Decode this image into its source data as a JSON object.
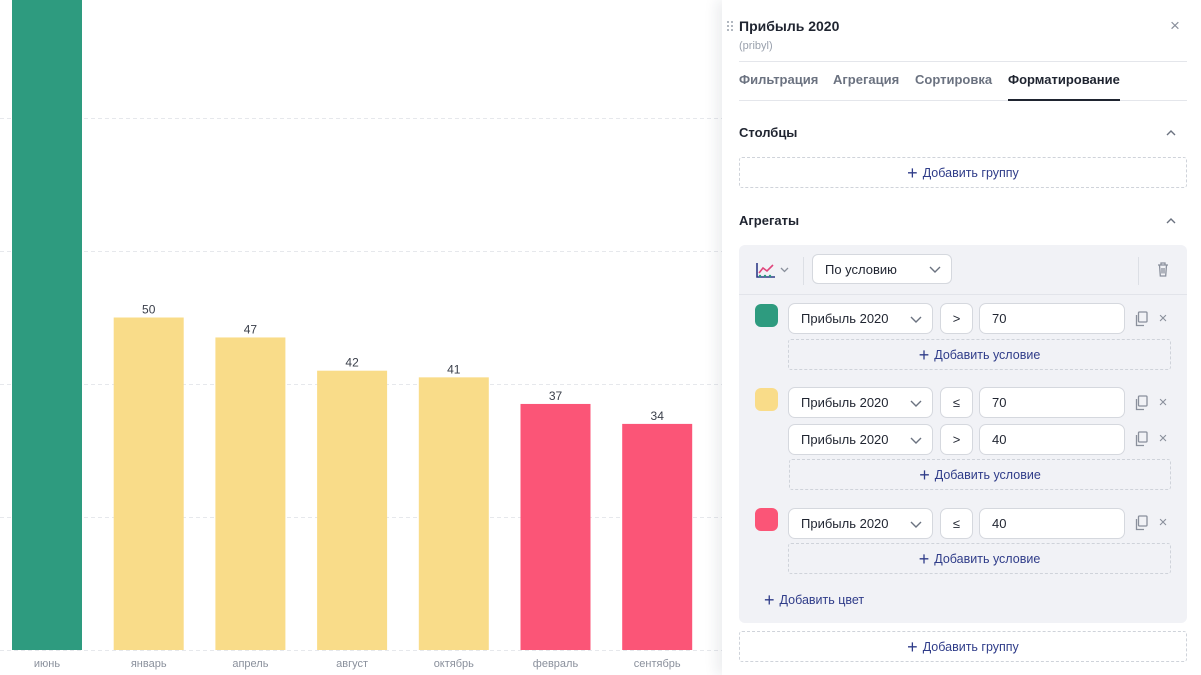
{
  "chart_data": {
    "type": "bar",
    "categories": [
      "июнь",
      "январь",
      "апрель",
      "август",
      "октябрь",
      "февраль",
      "сентябрь"
    ],
    "values": [
      100,
      50,
      47,
      42,
      41,
      37,
      34
    ],
    "data_labels": [
      "",
      "50",
      "47",
      "42",
      "41",
      "37",
      "34"
    ],
    "colors": [
      "#2e9b7f",
      "#f9dc89",
      "#f9dc89",
      "#f9dc89",
      "#f9dc89",
      "#fb5577",
      "#fb5577"
    ],
    "ylim": [
      0,
      100
    ],
    "grid": true
  },
  "panel": {
    "title": "Прибыль 2020",
    "subtitle": "(pribyl)",
    "close_icon": "×",
    "tabs": [
      "Фильтрация",
      "Агрегация",
      "Сортировка",
      "Форматирование"
    ],
    "active_tab": "Форматирование",
    "columns": {
      "title": "Столбцы",
      "add_group": "Добавить группу"
    },
    "aggregates": {
      "title": "Агрегаты",
      "mode": "По условию",
      "rules": [
        {
          "color": "#2e9b7f",
          "conditions": [
            {
              "field": "Прибыль 2020",
              "op": ">",
              "value": "70"
            }
          ],
          "add_condition": "Добавить условие"
        },
        {
          "color": "#f9dc89",
          "conditions": [
            {
              "field": "Прибыль 2020",
              "op": "≤",
              "value": "70"
            },
            {
              "field": "Прибыль 2020",
              "op": ">",
              "value": "40"
            }
          ],
          "add_condition": "Добавить условие"
        },
        {
          "color": "#fb5577",
          "conditions": [
            {
              "field": "Прибыль 2020",
              "op": "≤",
              "value": "40"
            }
          ],
          "add_condition": "Добавить условие"
        }
      ],
      "add_color": "Добавить цвет",
      "add_group": "Добавить группу"
    },
    "icons": {
      "drag": "drag-handle-icon",
      "close": "close-icon",
      "collapse": "chevron-up-icon",
      "chart_type": "line-chart-icon",
      "dropdown": "chevron-down-icon",
      "delete": "trash-icon",
      "copy": "copy-icon",
      "remove": "close-icon",
      "add": "plus-icon"
    },
    "colors": {
      "accent": "#2f3c89",
      "border": "#d5d8de",
      "box_bg": "#f1f2f6"
    }
  }
}
